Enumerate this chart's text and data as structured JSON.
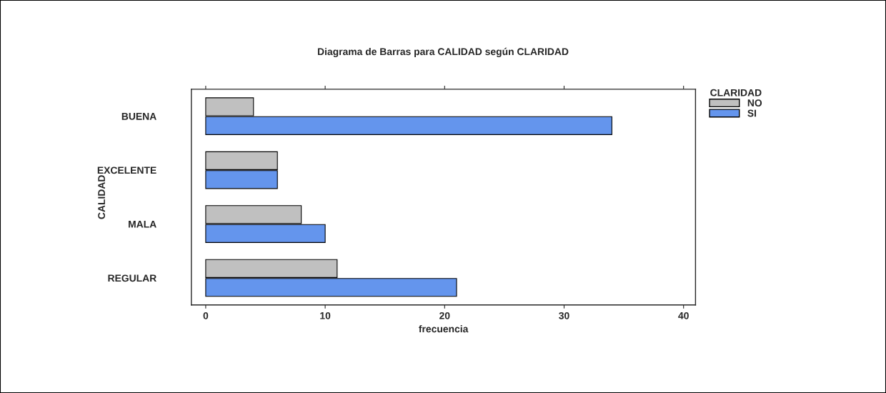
{
  "chart_data": {
    "type": "bar",
    "orientation": "horizontal",
    "title": "Diagrama de Barras para CALIDAD según CLARIDAD",
    "xlabel": "frecuencia",
    "ylabel": "CALIDAD",
    "legend_title": "CLARIDAD",
    "categories": [
      "BUENA",
      "EXCELENTE",
      "MALA",
      "REGULAR"
    ],
    "series": [
      {
        "name": "NO",
        "color": "#c0c0c0",
        "values": [
          4,
          6,
          8,
          11
        ]
      },
      {
        "name": "SI",
        "color": "#6495ed",
        "values": [
          34,
          6,
          10,
          21
        ]
      }
    ],
    "xlim": [
      -1.2,
      41
    ],
    "xticks": [
      0,
      10,
      20,
      30,
      40
    ],
    "grid": false,
    "legend": "top right"
  }
}
